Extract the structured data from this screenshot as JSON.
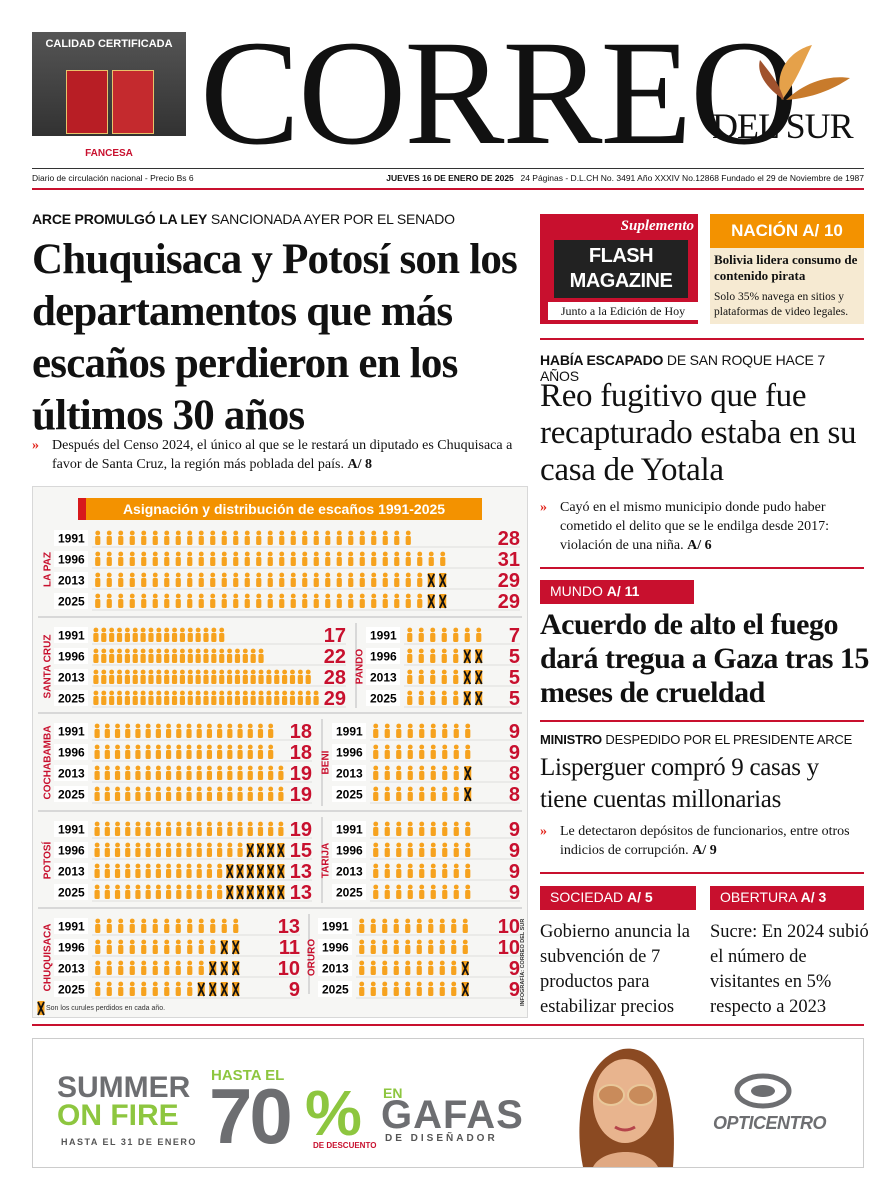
{
  "header": {
    "ad_title": "CALIDAD CERTIFICADA",
    "ad_brand": "FANCESA",
    "masthead": "CORREO",
    "masthead_sub": "DEL SUR",
    "dateline_left": "Diario de circulación nacional - Precio Bs 6",
    "dateline_center": "JUEVES 16 DE ENERO DE 2025",
    "dateline_right": "24 Páginas - D.L.CH No. 3491 Año XXXIV No.12868 Fundado el 29 de Noviembre de 1987"
  },
  "lead": {
    "kicker_bold": "ARCE PROMULGÓ LA LEY",
    "kicker": "SANCIONADA AYER POR EL SENADO",
    "headline": "Chuquisaca y Potosí son los departamentos que más escaños perdieron en los últimos 30 años",
    "summary": "Después del Censo 2024, el único al que se le restará un diputado es Chuquisaca a favor de Santa Cruz, la región más poblada del país.",
    "ref": "A/ 8",
    "infographic": {
      "title": "Asignación y distribución de escaños 1991-2025",
      "departments": [
        {
          "name": "LA PAZ",
          "rows": [
            {
              "year": "1991",
              "seats": 28
            },
            {
              "year": "1996",
              "seats": 31
            },
            {
              "year": "2013",
              "seats": 29
            },
            {
              "year": "2025",
              "seats": 29
            }
          ]
        },
        {
          "name": "SANTA CRUZ",
          "rows": [
            {
              "year": "1991",
              "seats": 17
            },
            {
              "year": "1996",
              "seats": 22
            },
            {
              "year": "2013",
              "seats": 28
            },
            {
              "year": "2025",
              "seats": 29
            }
          ]
        },
        {
          "name": "PANDO",
          "rows": [
            {
              "year": "1991",
              "seats": 7
            },
            {
              "year": "1996",
              "seats": 5
            },
            {
              "year": "2013",
              "seats": 5
            },
            {
              "year": "2025",
              "seats": 5
            }
          ]
        },
        {
          "name": "COCHABAMBA",
          "rows": [
            {
              "year": "1991",
              "seats": 18
            },
            {
              "year": "1996",
              "seats": 18
            },
            {
              "year": "2013",
              "seats": 19
            },
            {
              "year": "2025",
              "seats": 19
            }
          ]
        },
        {
          "name": "BENI",
          "rows": [
            {
              "year": "1991",
              "seats": 9
            },
            {
              "year": "1996",
              "seats": 9
            },
            {
              "year": "2013",
              "seats": 8
            },
            {
              "year": "2025",
              "seats": 8
            }
          ]
        },
        {
          "name": "POTOSÍ",
          "rows": [
            {
              "year": "1991",
              "seats": 19
            },
            {
              "year": "1996",
              "seats": 15
            },
            {
              "year": "2013",
              "seats": 13
            },
            {
              "year": "2025",
              "seats": 13
            }
          ]
        },
        {
          "name": "TARIJA",
          "rows": [
            {
              "year": "1991",
              "seats": 9
            },
            {
              "year": "1996",
              "seats": 9
            },
            {
              "year": "2013",
              "seats": 9
            },
            {
              "year": "2025",
              "seats": 9
            }
          ]
        },
        {
          "name": "CHUQUISACA",
          "rows": [
            {
              "year": "1991",
              "seats": 13
            },
            {
              "year": "1996",
              "seats": 11
            },
            {
              "year": "2013",
              "seats": 10
            },
            {
              "year": "2025",
              "seats": 9
            }
          ]
        },
        {
          "name": "ORURO",
          "rows": [
            {
              "year": "1991",
              "seats": 10
            },
            {
              "year": "1996",
              "seats": 10
            },
            {
              "year": "2013",
              "seats": 9
            },
            {
              "year": "2025",
              "seats": 9
            }
          ]
        }
      ],
      "note": "Son los curules perdidos en cada año.",
      "credit": "INFOGRAFÍA: CORREO DEL SUR"
    }
  },
  "supplement": {
    "label": "Suplemento",
    "title": "FLASH MAGAZINE",
    "note": "Junto a la Edición de Hoy"
  },
  "nacion": {
    "section": "NACIÓN",
    "ref": "A/ 10",
    "headline": "Bolivia lidera consumo de contenido pirata",
    "summary": "Solo 35% navega en sitios y plataformas de video legales."
  },
  "reo": {
    "kicker_bold": "HABÍA ESCAPADO",
    "kicker": "DE SAN ROQUE HACE 7 AÑOS",
    "headline": "Reo fugitivo que fue recapturado estaba en su casa de Yotala",
    "summary": "Cayó en el mismo municipio donde pudo haber cometido el delito que se le endilga desde 2017: violación de una niña.",
    "ref": "A/ 6"
  },
  "mundo": {
    "section": "MUNDO",
    "ref": "A/ 11",
    "headline": "Acuerdo de alto el fuego dará tregua a Gaza tras 15 meses de crueldad"
  },
  "ministro": {
    "kicker_bold": "MINISTRO",
    "kicker": "DESPEDIDO POR EL PRESIDENTE ARCE",
    "headline": "Lisperguer compró 9 casas y tiene cuentas millonarias",
    "summary": "Le detectaron depósitos de funcionarios, entre otros indicios de corrupción.",
    "ref": "A/ 9"
  },
  "sociedad": {
    "section": "SOCIEDAD",
    "ref": "A/ 5",
    "headline": "Gobierno anuncia la subvención de 7 productos para estabilizar precios"
  },
  "obertura": {
    "section": "OBERTURA",
    "ref": "A/ 3",
    "headline": "Sucre: En 2024 subió el número de visitantes en 5% respecto a 2023"
  },
  "ad": {
    "summer": "SUMMER",
    "on_fire": "ON FIRE",
    "until": "HASTA EL 31 DE ENERO",
    "upto": "HASTA EL",
    "discount": "70",
    "percent": "%",
    "discount_label": "DE DESCUENTO",
    "en": "EN",
    "gafas": "GAFAS",
    "designer": "DE DISEÑADOR",
    "brand": "OPTICENTRO"
  }
}
